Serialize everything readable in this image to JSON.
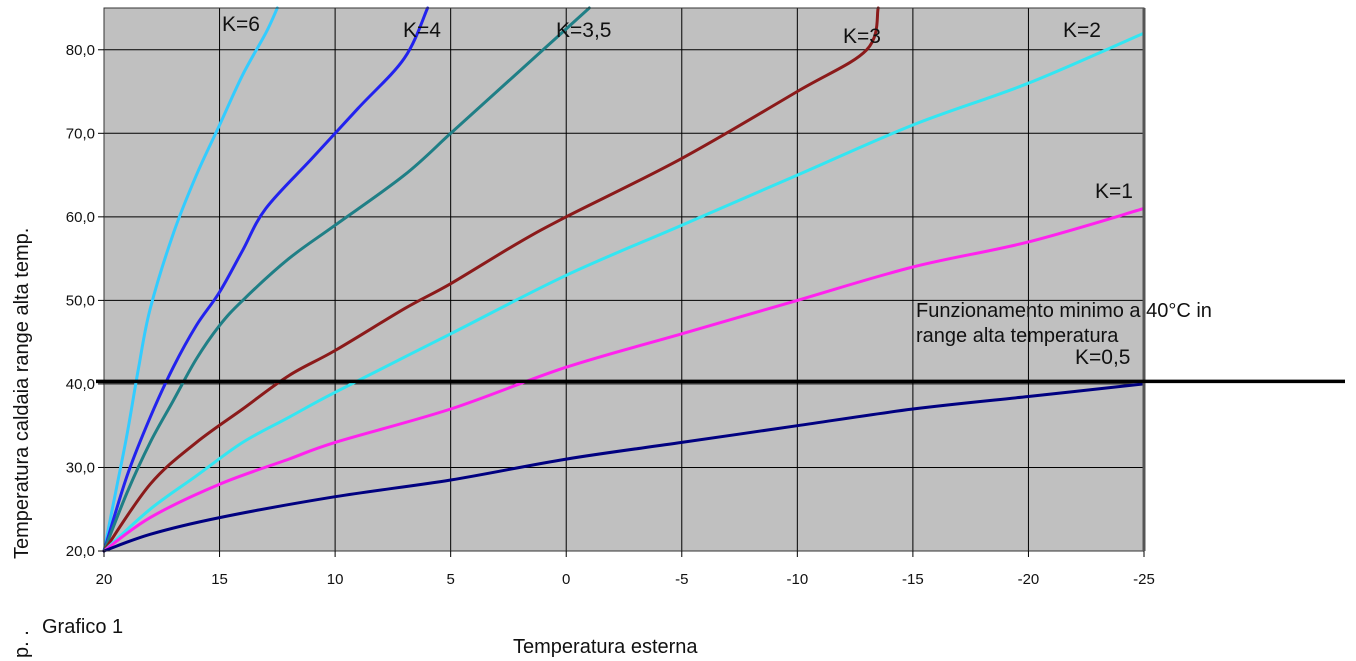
{
  "chart_data": {
    "type": "line",
    "title": "",
    "xlabel": "Temperatura esterna",
    "ylabel": "Temperatura caldaia range alta temp.",
    "xlim": [
      20,
      -25
    ],
    "ylim": [
      20,
      85
    ],
    "x_ticks": [
      "20",
      "15",
      "10",
      "5",
      "0",
      "-5",
      "-10",
      "-15",
      "-20",
      "-25"
    ],
    "y_ticks": [
      "20,0",
      "30,0",
      "40,0",
      "50,0",
      "60,0",
      "70,0",
      "80,0"
    ],
    "grid": true,
    "series": [
      {
        "name": "K=6",
        "color": "#33ccff",
        "points": [
          [
            20,
            20
          ],
          [
            19.5,
            27
          ],
          [
            19,
            34
          ],
          [
            18.5,
            42
          ],
          [
            18,
            49
          ],
          [
            17,
            58
          ],
          [
            16,
            65
          ],
          [
            15,
            71
          ],
          [
            14,
            77
          ],
          [
            13,
            82
          ],
          [
            12.5,
            85
          ]
        ]
      },
      {
        "name": "K=4",
        "color": "#2222ee",
        "points": [
          [
            20,
            20
          ],
          [
            19,
            29
          ],
          [
            18,
            36
          ],
          [
            17,
            42
          ],
          [
            16,
            47
          ],
          [
            15,
            51
          ],
          [
            14,
            56
          ],
          [
            13,
            61
          ],
          [
            11,
            67
          ],
          [
            9,
            73
          ],
          [
            7,
            79
          ],
          [
            6,
            85
          ]
        ]
      },
      {
        "name": "K=3,5",
        "color": "#1f7f86",
        "points": [
          [
            20,
            20
          ],
          [
            19,
            27
          ],
          [
            18,
            33
          ],
          [
            17,
            38
          ],
          [
            16,
            43
          ],
          [
            15,
            47
          ],
          [
            14,
            50
          ],
          [
            12,
            55
          ],
          [
            10,
            59
          ],
          [
            7,
            65
          ],
          [
            5,
            70
          ],
          [
            3,
            75
          ],
          [
            1,
            80
          ],
          [
            -1,
            85
          ]
        ]
      },
      {
        "name": "K=3",
        "color": "#8b1a1a",
        "points": [
          [
            20,
            20
          ],
          [
            18,
            28
          ],
          [
            16,
            33
          ],
          [
            14,
            37
          ],
          [
            12,
            41
          ],
          [
            10,
            44
          ],
          [
            7,
            49
          ],
          [
            5,
            52
          ],
          [
            2,
            57
          ],
          [
            0,
            60
          ],
          [
            -5,
            67
          ],
          [
            -10,
            75
          ],
          [
            -13,
            80
          ],
          [
            -13.5,
            85
          ]
        ]
      },
      {
        "name": "K=2",
        "color": "#33e6f2",
        "points": [
          [
            20,
            20
          ],
          [
            18,
            25
          ],
          [
            16,
            29
          ],
          [
            14,
            33
          ],
          [
            12,
            36
          ],
          [
            10,
            39
          ],
          [
            5,
            46
          ],
          [
            0,
            53
          ],
          [
            -5,
            59
          ],
          [
            -10,
            65
          ],
          [
            -15,
            71
          ],
          [
            -20,
            76
          ],
          [
            -25,
            82
          ]
        ]
      },
      {
        "name": "K=1",
        "color": "#ff22ee",
        "points": [
          [
            20,
            20
          ],
          [
            18,
            24
          ],
          [
            15,
            28
          ],
          [
            12,
            31
          ],
          [
            10,
            33
          ],
          [
            5,
            37
          ],
          [
            0,
            42
          ],
          [
            -5,
            46
          ],
          [
            -10,
            50
          ],
          [
            -15,
            54
          ],
          [
            -20,
            57
          ],
          [
            -25,
            61
          ]
        ]
      },
      {
        "name": "K=0,5",
        "color": "#000080",
        "points": [
          [
            20,
            20
          ],
          [
            18,
            22
          ],
          [
            15,
            24
          ],
          [
            10,
            26.5
          ],
          [
            5,
            28.5
          ],
          [
            0,
            31
          ],
          [
            -5,
            33
          ],
          [
            -10,
            35
          ],
          [
            -15,
            37
          ],
          [
            -20,
            38.5
          ],
          [
            -25,
            40
          ]
        ]
      }
    ],
    "reference_line": {
      "y": 40.3,
      "color": "#000000"
    },
    "annotation_lines": [
      "Funzionamento minimo a 40°C in",
      "range alta temperatura"
    ],
    "caption": "Grafico 1",
    "caption_mark": "p. ."
  }
}
